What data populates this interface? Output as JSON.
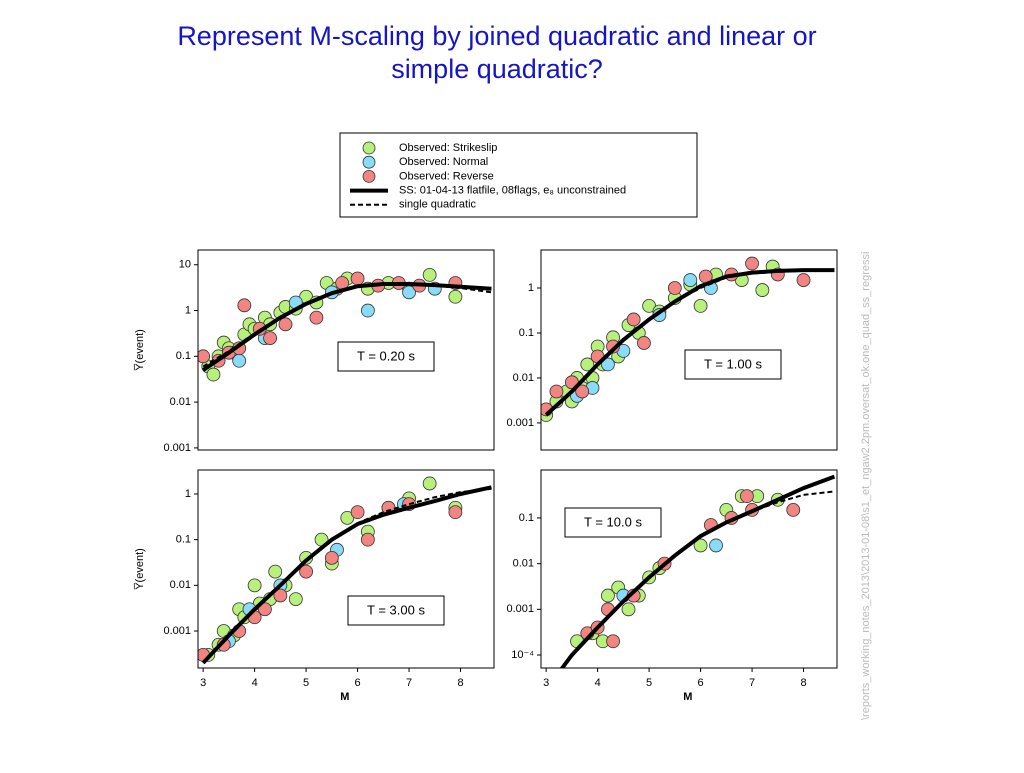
{
  "title": "Represent M-scaling by joined quadratic and linear or simple quadratic?",
  "side_note": "\\reports_working_notes_2013\\2013-01-08\\s1_et_ngaw2.2pm.oversat_ok.one_quad_ss_regressi",
  "chart_data": [
    {
      "type": "scatter",
      "annotation": "T = 0.20 s",
      "ylabel": "Y̅(event)",
      "log_y": true,
      "xlim": [
        2.9,
        8.65
      ],
      "ylim": [
        0.0009,
        21
      ],
      "yticks": [
        10,
        1,
        0.1,
        0.01,
        0.001
      ],
      "series": [
        {
          "name": "Observed: Strikeslip",
          "color": "#b8f07c",
          "x": [
            3.1,
            3.2,
            3.3,
            3.4,
            3.5,
            3.6,
            3.8,
            3.9,
            4.0,
            4.2,
            4.3,
            4.5,
            4.6,
            4.8,
            5.0,
            5.2,
            5.4,
            5.6,
            5.8,
            6.2,
            6.6,
            7.0,
            7.4,
            7.9
          ],
          "values": [
            0.06,
            0.04,
            0.1,
            0.2,
            0.15,
            0.12,
            0.3,
            0.5,
            0.4,
            0.7,
            0.5,
            0.9,
            1.2,
            1.1,
            2,
            1.5,
            4,
            3,
            5,
            3,
            4,
            3,
            6,
            2
          ]
        },
        {
          "name": "Observed: Normal",
          "color": "#88dcfa",
          "x": [
            3.7,
            4.2,
            4.8,
            5.5,
            6.2,
            7.0,
            7.5
          ],
          "values": [
            0.08,
            0.25,
            1.5,
            2.5,
            1,
            2.5,
            3
          ]
        },
        {
          "name": "Observed: Reverse",
          "color": "#f28482",
          "x": [
            3.0,
            3.3,
            3.5,
            3.7,
            3.8,
            4.1,
            4.3,
            4.6,
            5.2,
            5.7,
            6.0,
            6.4,
            6.8,
            7.2,
            7.9
          ],
          "values": [
            0.1,
            0.08,
            0.12,
            0.15,
            1.3,
            0.4,
            0.25,
            0.5,
            0.7,
            4,
            5,
            3.5,
            4,
            3.5,
            4
          ]
        },
        {
          "name": "SS: 01-04-13 flatfile, 08flags, e₈ unconstrained",
          "color": "#000000",
          "line": "solid",
          "x": [
            3,
            3.5,
            4,
            4.5,
            5,
            5.5,
            6,
            6.5,
            7,
            7.5,
            8,
            8.6
          ],
          "values": [
            0.05,
            0.12,
            0.3,
            0.7,
            1.4,
            2.4,
            3.4,
            3.8,
            3.8,
            3.6,
            3.3,
            3.0
          ]
        },
        {
          "name": "single quadratic",
          "color": "#000000",
          "line": "dashed",
          "x": [
            3,
            3.5,
            4,
            4.5,
            5,
            5.5,
            6,
            6.5,
            7,
            7.5,
            8,
            8.6
          ],
          "values": [
            0.06,
            0.13,
            0.32,
            0.72,
            1.4,
            2.4,
            3.3,
            3.7,
            3.7,
            3.5,
            3.1,
            2.5
          ]
        }
      ]
    },
    {
      "type": "scatter",
      "annotation": "T = 1.00 s",
      "log_y": true,
      "xlim": [
        2.9,
        8.65
      ],
      "ylim": [
        0.00025,
        7
      ],
      "yticks": [
        1,
        0.1,
        0.01,
        0.001
      ],
      "series": [
        {
          "name": "Observed: Strikeslip",
          "color": "#b8f07c",
          "x": [
            3.0,
            3.2,
            3.4,
            3.5,
            3.6,
            3.7,
            3.8,
            3.9,
            4.0,
            4.1,
            4.3,
            4.4,
            4.6,
            4.8,
            5.0,
            5.2,
            5.5,
            5.8,
            6.0,
            6.3,
            6.8,
            7.2,
            7.4
          ],
          "values": [
            0.0015,
            0.003,
            0.005,
            0.003,
            0.01,
            0.006,
            0.02,
            0.01,
            0.05,
            0.02,
            0.08,
            0.03,
            0.15,
            0.1,
            0.4,
            0.3,
            0.6,
            1.2,
            0.4,
            2,
            1.5,
            0.9,
            3
          ]
        },
        {
          "name": "Observed: Normal",
          "color": "#88dcfa",
          "x": [
            3.6,
            3.9,
            4.2,
            4.5,
            5.2,
            5.8,
            6.2
          ],
          "values": [
            0.004,
            0.006,
            0.02,
            0.04,
            0.25,
            1.5,
            1
          ]
        },
        {
          "name": "Observed: Reverse",
          "color": "#f28482",
          "x": [
            3.0,
            3.2,
            3.5,
            3.7,
            4.0,
            4.3,
            4.7,
            4.9,
            5.5,
            6.1,
            6.6,
            7.0,
            7.5,
            8.0
          ],
          "values": [
            0.002,
            0.005,
            0.008,
            0.005,
            0.03,
            0.05,
            0.2,
            0.06,
            1,
            1.8,
            2,
            3.5,
            2,
            1.5
          ]
        },
        {
          "name": "SS: 01-04-13 flatfile, 08flags, e₈ unconstrained",
          "color": "#000000",
          "line": "solid",
          "x": [
            3,
            3.5,
            4,
            4.5,
            5,
            5.5,
            6,
            6.5,
            7,
            7.5,
            8,
            8.6
          ],
          "values": [
            0.0015,
            0.005,
            0.02,
            0.07,
            0.2,
            0.5,
            1.1,
            1.8,
            2.2,
            2.4,
            2.5,
            2.5
          ]
        },
        {
          "name": "single quadratic",
          "color": "#000000",
          "line": "dashed",
          "x": [
            3,
            3.5,
            4,
            4.5,
            5,
            5.5,
            6,
            6.5,
            7,
            7.5,
            8,
            8.6
          ],
          "values": [
            0.0016,
            0.005,
            0.02,
            0.07,
            0.2,
            0.5,
            1.0,
            1.7,
            2.1,
            2.3,
            2.4,
            2.4
          ]
        }
      ]
    },
    {
      "type": "scatter",
      "annotation": "T = 3.00 s",
      "ylabel": "Y̅(event)",
      "xlabel": "M",
      "log_y": true,
      "xlim": [
        2.9,
        8.65
      ],
      "xticks": [
        3,
        4,
        5,
        6,
        7,
        8
      ],
      "ylim": [
        0.000155,
        3.35
      ],
      "yticks": [
        1,
        0.1,
        0.01,
        0.001
      ],
      "series": [
        {
          "name": "Observed: Strikeslip",
          "color": "#b8f07c",
          "x": [
            3.1,
            3.3,
            3.4,
            3.6,
            3.7,
            3.8,
            4.0,
            4.1,
            4.3,
            4.4,
            4.6,
            4.8,
            5.0,
            5.3,
            5.5,
            5.8,
            6.2,
            6.6,
            7.0,
            7.4,
            7.9
          ],
          "values": [
            0.0003,
            0.0005,
            0.001,
            0.0008,
            0.003,
            0.002,
            0.01,
            0.004,
            0.005,
            0.02,
            0.01,
            0.005,
            0.04,
            0.1,
            0.03,
            0.3,
            0.15,
            0.5,
            0.8,
            1.7,
            0.5
          ]
        },
        {
          "name": "Observed: Normal",
          "color": "#88dcfa",
          "x": [
            3.5,
            3.9,
            4.5,
            5.6,
            6.9
          ],
          "values": [
            0.0006,
            0.003,
            0.01,
            0.06,
            0.6
          ]
        },
        {
          "name": "Observed: Reverse",
          "color": "#f28482",
          "x": [
            3.0,
            3.4,
            3.7,
            4.0,
            4.2,
            4.5,
            5.0,
            5.5,
            6.0,
            6.2,
            6.6,
            7.0,
            7.9
          ],
          "values": [
            0.0003,
            0.0005,
            0.001,
            0.002,
            0.003,
            0.006,
            0.02,
            0.04,
            0.4,
            0.1,
            0.5,
            0.6,
            0.4
          ]
        },
        {
          "name": "SS: 01-04-13 flatfile, 08flags, e₈ unconstrained",
          "color": "#000000",
          "line": "solid",
          "x": [
            3,
            3.5,
            4,
            4.5,
            5,
            5.5,
            6,
            6.5,
            7,
            7.5,
            8,
            8.6
          ],
          "values": [
            0.0002,
            0.0008,
            0.003,
            0.01,
            0.035,
            0.1,
            0.22,
            0.35,
            0.5,
            0.7,
            1.0,
            1.4
          ]
        },
        {
          "name": "single quadratic",
          "color": "#000000",
          "line": "dashed",
          "x": [
            3,
            3.5,
            4,
            4.5,
            5,
            5.5,
            6,
            6.5,
            7,
            7.5,
            8,
            8.6
          ],
          "values": [
            0.0002,
            0.0008,
            0.003,
            0.01,
            0.035,
            0.1,
            0.23,
            0.4,
            0.6,
            0.85,
            1.1,
            1.3
          ]
        }
      ]
    },
    {
      "type": "scatter",
      "annotation": "T = 10.0 s",
      "xlabel": "M",
      "log_y": true,
      "xlim": [
        2.9,
        8.65
      ],
      "xticks": [
        3,
        4,
        5,
        6,
        7,
        8
      ],
      "ylim": [
        5.2e-05,
        1.12
      ],
      "yticks": [
        0.1,
        0.01,
        0.001,
        {
          "value": 0.0001,
          "label": "10⁻⁴"
        }
      ],
      "series": [
        {
          "name": "Observed: Strikeslip",
          "color": "#b8f07c",
          "x": [
            3.6,
            3.9,
            4.1,
            4.2,
            4.4,
            4.6,
            4.8,
            5.0,
            5.2,
            6.0,
            6.5,
            6.8,
            7.1,
            7.5
          ],
          "values": [
            0.0002,
            0.0003,
            0.0002,
            0.002,
            0.003,
            0.001,
            0.002,
            0.005,
            0.008,
            0.025,
            0.15,
            0.3,
            0.3,
            0.25
          ]
        },
        {
          "name": "Observed: Normal",
          "color": "#88dcfa",
          "x": [
            4.5,
            6.3
          ],
          "values": [
            0.002,
            0.025
          ]
        },
        {
          "name": "Observed: Reverse",
          "color": "#f28482",
          "x": [
            3.8,
            4.0,
            4.2,
            4.3,
            4.7,
            5.3,
            6.2,
            6.6,
            6.9,
            7.0,
            7.8
          ],
          "values": [
            0.0003,
            0.0004,
            0.001,
            0.0002,
            0.002,
            0.01,
            0.07,
            0.1,
            0.3,
            0.15,
            0.15
          ]
        },
        {
          "name": "SS: 01-04-13 flatfile, 08flags, e₈ unconstrained",
          "color": "#000000",
          "line": "solid",
          "x": [
            3.3,
            3.5,
            4,
            4.5,
            5,
            5.5,
            6,
            6.5,
            7,
            7.5,
            8,
            8.6
          ],
          "values": [
            5e-05,
            0.0001,
            0.0004,
            0.0015,
            0.005,
            0.015,
            0.04,
            0.08,
            0.14,
            0.25,
            0.45,
            0.8
          ]
        },
        {
          "name": "single quadratic",
          "color": "#000000",
          "line": "dashed",
          "x": [
            3.3,
            3.5,
            4,
            4.5,
            5,
            5.5,
            6,
            6.5,
            7,
            7.5,
            8,
            8.6
          ],
          "values": [
            5e-05,
            0.0001,
            0.0004,
            0.0015,
            0.005,
            0.015,
            0.04,
            0.08,
            0.14,
            0.22,
            0.32,
            0.38
          ]
        }
      ]
    }
  ]
}
